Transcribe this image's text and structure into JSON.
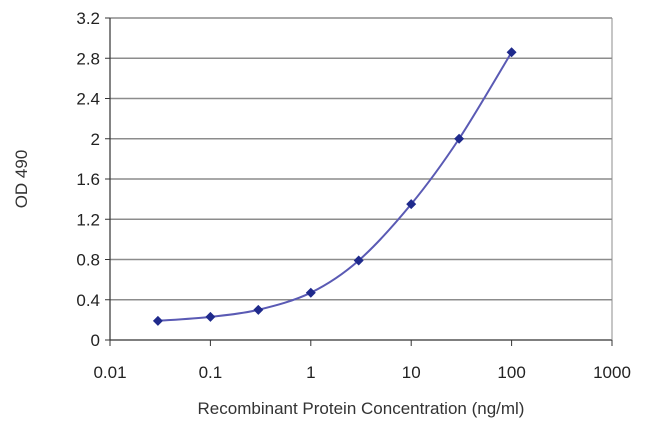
{
  "chart_data": {
    "type": "line",
    "title": "",
    "xlabel": "Recombinant Protein Concentration (ng/ml)",
    "ylabel": "OD 490",
    "x_scale": "log",
    "xlim": [
      0.01,
      1000
    ],
    "ylim": [
      0,
      3.2
    ],
    "x_ticks": [
      0.01,
      0.1,
      1,
      10,
      100,
      1000
    ],
    "x_tick_labels": [
      "0.01",
      "0.1",
      "1",
      "10",
      "100",
      "1000"
    ],
    "y_ticks": [
      0,
      0.4,
      0.8,
      1.2,
      1.6,
      2,
      2.4,
      2.8,
      3.2
    ],
    "y_tick_labels": [
      "0",
      "0.4",
      "0.8",
      "1.2",
      "1.6",
      "2",
      "2.4",
      "2.8",
      "3.2"
    ],
    "grid": "horizontal",
    "legend": "none",
    "series": [
      {
        "x": [
          0.03,
          0.1,
          0.3,
          1,
          3,
          10,
          30,
          100
        ],
        "y": [
          0.19,
          0.23,
          0.3,
          0.47,
          0.79,
          1.35,
          2.0,
          2.86
        ],
        "color": "#5a5ab4",
        "marker_color": "#1f2a8c",
        "marker": "diamond"
      }
    ],
    "colors": {
      "plot_background": "#ffffff",
      "gridline": "#8c8c8c",
      "axis": "#333333"
    }
  }
}
